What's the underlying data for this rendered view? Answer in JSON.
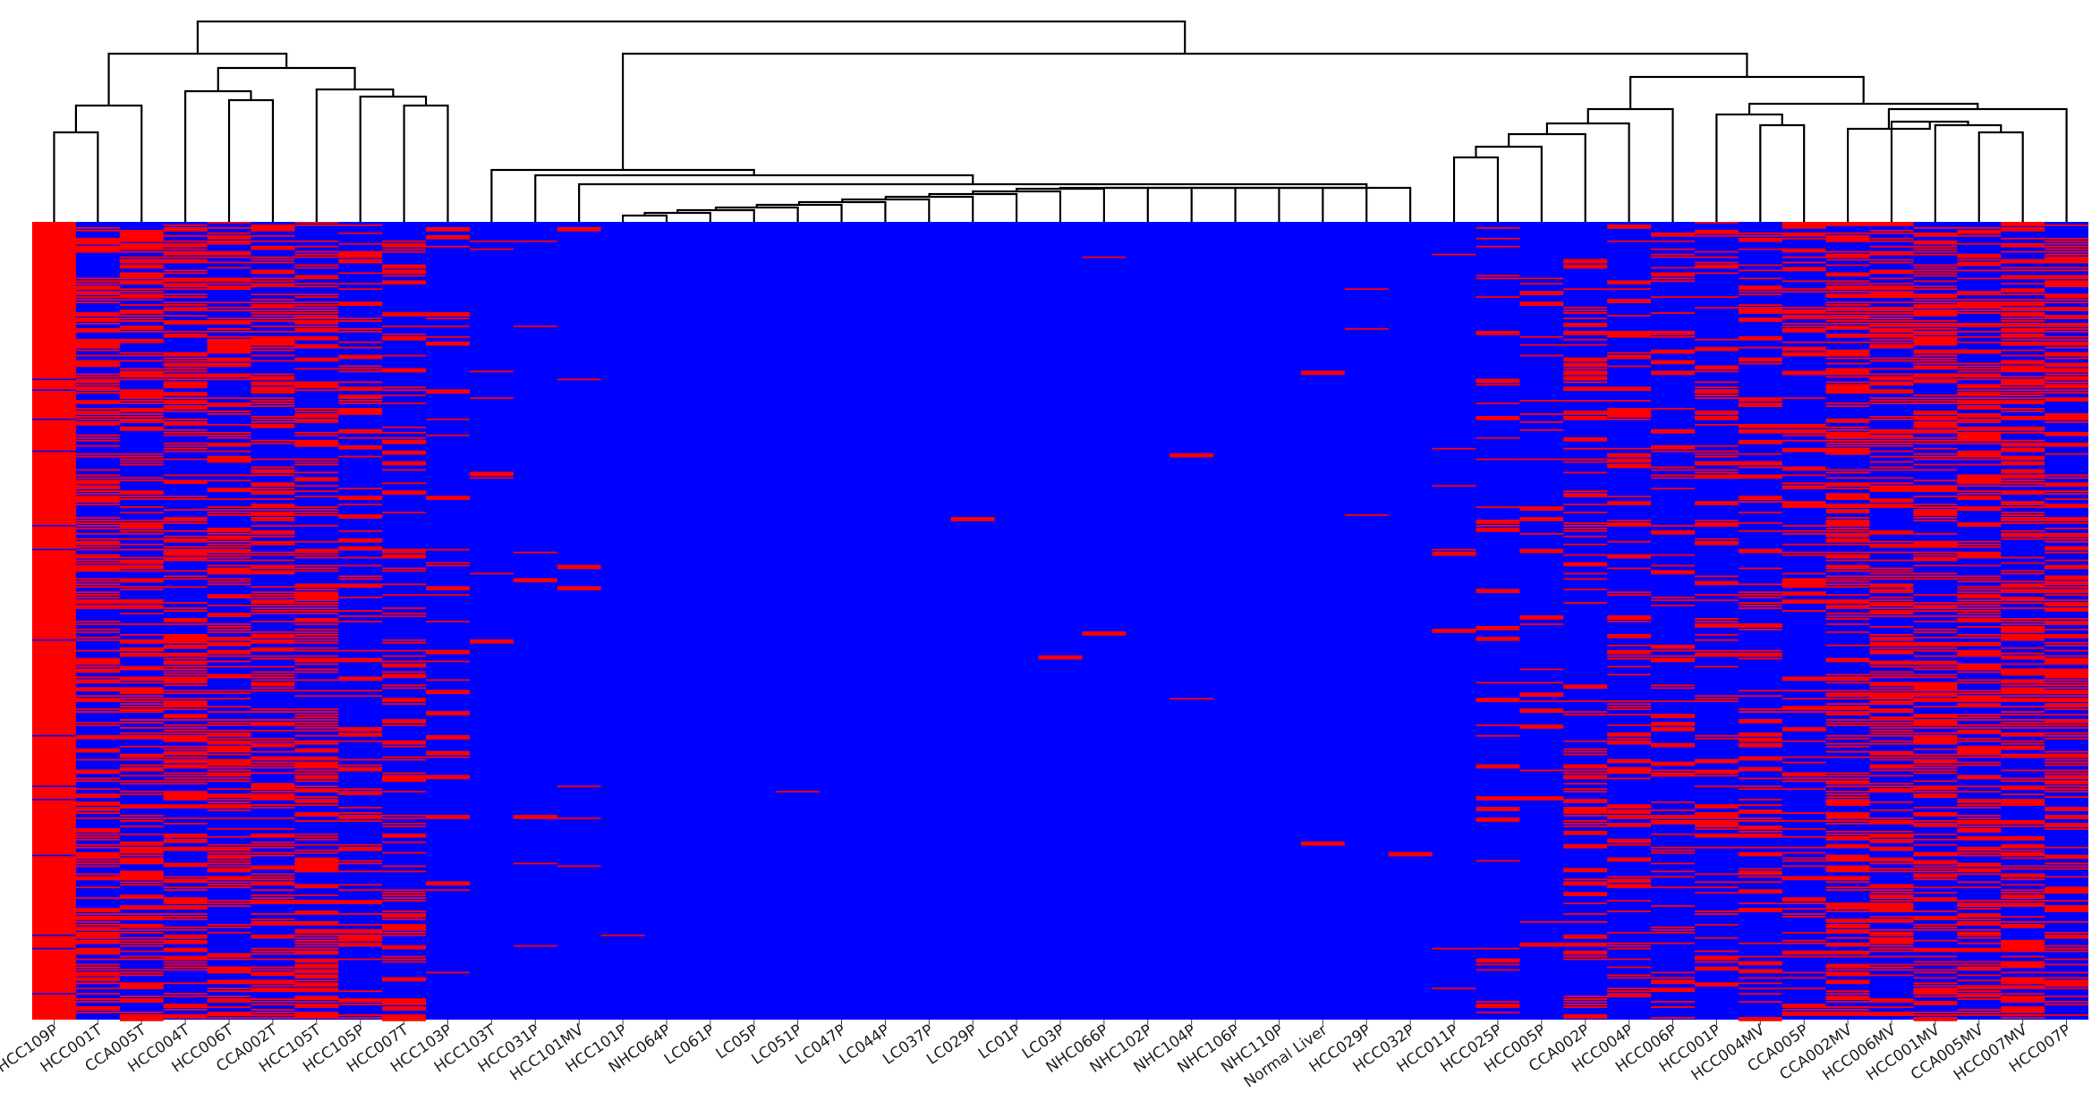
{
  "chart_data": {
    "type": "heatmap",
    "title": "",
    "xlabel": "",
    "ylabel": "",
    "dendrogram": "hierarchical clustering of samples (top)",
    "colors": {
      "high": "#ff0000",
      "low": "#0000ff",
      "tree": "#000000"
    },
    "columns": [
      {
        "label": "HCC109P",
        "pattern": "solid"
      },
      {
        "label": "HCC001T",
        "pattern": "dense"
      },
      {
        "label": "CCA005T",
        "pattern": "dense"
      },
      {
        "label": "HCC004T",
        "pattern": "dense"
      },
      {
        "label": "HCC006T",
        "pattern": "dense"
      },
      {
        "label": "CCA002T",
        "pattern": "dense"
      },
      {
        "label": "HCC105T",
        "pattern": "dense"
      },
      {
        "label": "HCC105P",
        "pattern": "medium"
      },
      {
        "label": "HCC007T",
        "pattern": "medium"
      },
      {
        "label": "HCC103P",
        "pattern": "sparse"
      },
      {
        "label": "HCC103T",
        "pattern": "rare"
      },
      {
        "label": "HCC031P",
        "pattern": "rare"
      },
      {
        "label": "HCC101MV",
        "pattern": "rare"
      },
      {
        "label": "HCC101P",
        "pattern": "none"
      },
      {
        "label": "NHC064P",
        "pattern": "none"
      },
      {
        "label": "LC061P",
        "pattern": "none"
      },
      {
        "label": "LC05P",
        "pattern": "none"
      },
      {
        "label": "LC051P",
        "pattern": "none"
      },
      {
        "label": "LC047P",
        "pattern": "none"
      },
      {
        "label": "LC044P",
        "pattern": "none"
      },
      {
        "label": "LC037P",
        "pattern": "none"
      },
      {
        "label": "LC029P",
        "pattern": "none"
      },
      {
        "label": "LC01P",
        "pattern": "none"
      },
      {
        "label": "LC03P",
        "pattern": "none"
      },
      {
        "label": "NHC066P",
        "pattern": "none"
      },
      {
        "label": "NHC102P",
        "pattern": "none"
      },
      {
        "label": "NHC104P",
        "pattern": "none"
      },
      {
        "label": "NHC106P",
        "pattern": "none"
      },
      {
        "label": "NHC110P",
        "pattern": "none"
      },
      {
        "label": "Normal Liver",
        "pattern": "none"
      },
      {
        "label": "HCC029P",
        "pattern": "none"
      },
      {
        "label": "HCC032P",
        "pattern": "none"
      },
      {
        "label": "HCC011P",
        "pattern": "rare"
      },
      {
        "label": "HCC025P",
        "pattern": "sparse"
      },
      {
        "label": "HCC005P",
        "pattern": "sparse"
      },
      {
        "label": "CCA002P",
        "pattern": "medium"
      },
      {
        "label": "HCC004P",
        "pattern": "medium"
      },
      {
        "label": "HCC006P",
        "pattern": "medium"
      },
      {
        "label": "HCC001P",
        "pattern": "medium"
      },
      {
        "label": "HCC004MV",
        "pattern": "medium"
      },
      {
        "label": "CCA005P",
        "pattern": "medium"
      },
      {
        "label": "CCA002MV",
        "pattern": "dense"
      },
      {
        "label": "HCC006MV",
        "pattern": "dense"
      },
      {
        "label": "HCC001MV",
        "pattern": "dense"
      },
      {
        "label": "CCA005MV",
        "pattern": "dense"
      },
      {
        "label": "HCC007MV",
        "pattern": "dense"
      },
      {
        "label": "HCC007P",
        "pattern": "dense"
      }
    ]
  }
}
